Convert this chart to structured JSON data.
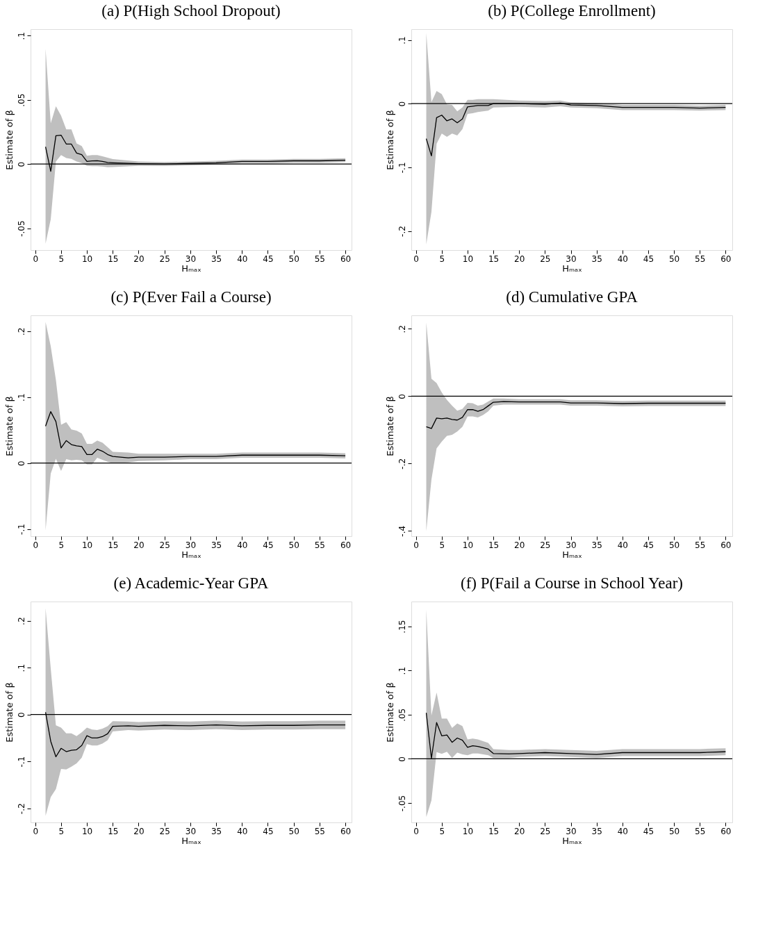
{
  "chart_data": [
    {
      "type": "line",
      "title": "(a) P(High School Dropout)",
      "xlabel": "Hₘₐₓ",
      "ylabel": "Estimate of β",
      "xlim": [
        -0.9,
        61.2
      ],
      "ylim": [
        -0.067,
        0.105
      ],
      "xticks": [
        0,
        5,
        10,
        15,
        20,
        25,
        30,
        35,
        40,
        45,
        50,
        55,
        60
      ],
      "yticks": [
        {
          "value": 0.1,
          "label": ".1"
        },
        {
          "value": 0.05,
          "label": ".05"
        },
        0,
        {
          "value": -0.05,
          "label": "-.05"
        }
      ],
      "grid": false,
      "legend": false,
      "ref_lines": [
        {
          "axis": "y",
          "value": 0,
          "color": "#000000"
        }
      ],
      "series": [
        {
          "color": "#000000",
          "x": [
            2,
            3,
            4,
            5,
            6,
            7,
            8,
            9,
            10,
            11,
            12,
            13,
            14,
            15,
            20,
            25,
            30,
            35,
            40,
            45,
            50,
            55,
            60
          ],
          "values": [
            0.0134,
            -0.0057,
            0.022,
            0.0225,
            0.0156,
            0.0155,
            0.0085,
            0.0073,
            0.002,
            0.0024,
            0.0026,
            0.002,
            0.0012,
            0.001,
            0.0003,
            0.0,
            0.0005,
            0.001,
            0.002,
            0.002,
            0.0025,
            0.0025,
            0.003
          ],
          "upper": [
            0.0897,
            0.0317,
            0.045,
            0.0377,
            0.027,
            0.027,
            0.016,
            0.014,
            0.0064,
            0.007,
            0.007,
            0.006,
            0.005,
            0.0038,
            0.002,
            0.0015,
            0.002,
            0.0025,
            0.0035,
            0.0035,
            0.004,
            0.004,
            0.0045
          ],
          "lower": [
            -0.062,
            -0.043,
            0.002,
            0.007,
            0.0047,
            0.004,
            0.002,
            0.0007,
            -0.0014,
            -0.0017,
            -0.0017,
            -0.002,
            -0.0025,
            -0.0024,
            -0.0014,
            -0.0015,
            -0.001,
            -0.0005,
            0.0005,
            0.0005,
            0.001,
            0.001,
            0.0015
          ]
        }
      ]
    },
    {
      "type": "line",
      "title": "(b) P(College Enrollment)",
      "xlabel": "Hₘₐₓ",
      "ylabel": "Estimate of β",
      "xlim": [
        -0.9,
        61.3
      ],
      "ylim": [
        -0.23,
        0.117
      ],
      "xticks": [
        0,
        5,
        10,
        15,
        20,
        25,
        30,
        35,
        40,
        45,
        50,
        55,
        60
      ],
      "yticks": [
        {
          "value": 0.1,
          "label": ".1"
        },
        0,
        {
          "value": -0.1,
          "label": "-.1"
        },
        {
          "value": -0.2,
          "label": "-.2"
        }
      ],
      "grid": false,
      "legend": false,
      "ref_lines": [
        {
          "axis": "y",
          "value": 0,
          "color": "#000000"
        }
      ],
      "series": [
        {
          "color": "#000000",
          "x": [
            2,
            3,
            4,
            5,
            6,
            7,
            8,
            9,
            10,
            11,
            12,
            13,
            14,
            15,
            20,
            25,
            28,
            30,
            35,
            40,
            45,
            50,
            55,
            60
          ],
          "values": [
            -0.055,
            -0.082,
            -0.022,
            -0.018,
            -0.027,
            -0.024,
            -0.03,
            -0.024,
            -0.005,
            -0.004,
            -0.003,
            -0.003,
            -0.003,
            0.0,
            0.0,
            -0.001,
            0.001,
            -0.002,
            -0.003,
            -0.006,
            -0.006,
            -0.006,
            -0.007,
            -0.006
          ],
          "upper": [
            0.111,
            0.0025,
            0.02,
            0.015,
            -0.001,
            -0.002,
            -0.012,
            -0.006,
            0.006,
            0.006,
            0.007,
            0.007,
            0.007,
            0.007,
            0.005,
            0.004,
            0.005,
            0.002,
            0.001,
            -0.002,
            -0.002,
            -0.002,
            -0.003,
            -0.002
          ],
          "lower": [
            -0.221,
            -0.17,
            -0.063,
            -0.047,
            -0.052,
            -0.047,
            -0.05,
            -0.04,
            -0.016,
            -0.015,
            -0.013,
            -0.012,
            -0.011,
            -0.006,
            -0.005,
            -0.006,
            -0.004,
            -0.006,
            -0.007,
            -0.01,
            -0.01,
            -0.01,
            -0.011,
            -0.01
          ]
        }
      ]
    },
    {
      "type": "line",
      "title": "(c) P(Ever Fail a Course)",
      "xlabel": "Hₘₐₓ",
      "ylabel": "Estimate of β",
      "xlim": [
        -0.9,
        61.2
      ],
      "ylim": [
        -0.111,
        0.224
      ],
      "xticks": [
        0,
        5,
        10,
        15,
        20,
        25,
        30,
        35,
        40,
        45,
        50,
        55,
        60
      ],
      "yticks": [
        {
          "value": 0.2,
          "label": ".2"
        },
        {
          "value": 0.1,
          "label": ".1"
        },
        0,
        {
          "value": -0.1,
          "label": "-.1"
        }
      ],
      "grid": false,
      "legend": false,
      "ref_lines": [
        {
          "axis": "y",
          "value": 0,
          "color": "#000000"
        }
      ],
      "series": [
        {
          "color": "#000000",
          "x": [
            2,
            3,
            4,
            5,
            6,
            7,
            8,
            9,
            10,
            11,
            12,
            13,
            14,
            15,
            18,
            20,
            25,
            30,
            35,
            40,
            45,
            50,
            55,
            60
          ],
          "values": [
            0.056,
            0.078,
            0.063,
            0.023,
            0.034,
            0.028,
            0.026,
            0.025,
            0.013,
            0.013,
            0.021,
            0.018,
            0.013,
            0.01,
            0.008,
            0.009,
            0.009,
            0.01,
            0.01,
            0.012,
            0.012,
            0.012,
            0.012,
            0.011
          ],
          "upper": [
            0.214,
            0.177,
            0.126,
            0.058,
            0.062,
            0.051,
            0.049,
            0.045,
            0.029,
            0.029,
            0.034,
            0.031,
            0.024,
            0.017,
            0.016,
            0.014,
            0.014,
            0.014,
            0.014,
            0.016,
            0.016,
            0.016,
            0.016,
            0.015
          ],
          "lower": [
            -0.102,
            -0.016,
            0.0065,
            -0.012,
            0.006,
            0.004,
            0.005,
            0.004,
            -0.002,
            -0.002,
            0.008,
            0.005,
            0.002,
            0.0,
            0.001,
            0.003,
            0.004,
            0.006,
            0.006,
            0.008,
            0.008,
            0.008,
            0.008,
            0.007
          ]
        }
      ]
    },
    {
      "type": "line",
      "title": "(d) Cumulative GPA",
      "xlabel": "Hₘₐₓ",
      "ylabel": "Estimate of β",
      "xlim": [
        -0.9,
        61.3
      ],
      "ylim": [
        -0.416,
        0.24
      ],
      "xticks": [
        0,
        5,
        10,
        15,
        20,
        25,
        30,
        35,
        40,
        45,
        50,
        55,
        60
      ],
      "yticks": [
        {
          "value": 0.2,
          "label": ".2"
        },
        0,
        {
          "value": -0.2,
          "label": "-.2"
        },
        {
          "value": -0.4,
          "label": "-.4"
        }
      ],
      "grid": false,
      "legend": false,
      "ref_lines": [
        {
          "axis": "y",
          "value": 0,
          "color": "#000000"
        }
      ],
      "series": [
        {
          "color": "#000000",
          "x": [
            2,
            3,
            4,
            5,
            6,
            7,
            8,
            9,
            10,
            11,
            12,
            13,
            14,
            15,
            17,
            20,
            25,
            28,
            30,
            35,
            40,
            45,
            50,
            55,
            60
          ],
          "values": [
            -0.091,
            -0.096,
            -0.065,
            -0.067,
            -0.065,
            -0.069,
            -0.071,
            -0.063,
            -0.04,
            -0.04,
            -0.045,
            -0.04,
            -0.029,
            -0.018,
            -0.016,
            -0.017,
            -0.017,
            -0.017,
            -0.02,
            -0.02,
            -0.022,
            -0.021,
            -0.021,
            -0.021,
            -0.021
          ],
          "upper": [
            0.219,
            0.052,
            0.039,
            0.011,
            -0.011,
            -0.028,
            -0.043,
            -0.038,
            -0.02,
            -0.021,
            -0.028,
            -0.025,
            -0.016,
            -0.007,
            -0.007,
            -0.009,
            -0.009,
            -0.009,
            -0.012,
            -0.012,
            -0.014,
            -0.013,
            -0.013,
            -0.013,
            -0.013
          ],
          "lower": [
            -0.401,
            -0.248,
            -0.155,
            -0.135,
            -0.118,
            -0.115,
            -0.105,
            -0.091,
            -0.06,
            -0.06,
            -0.063,
            -0.056,
            -0.045,
            -0.028,
            -0.025,
            -0.025,
            -0.025,
            -0.025,
            -0.028,
            -0.028,
            -0.03,
            -0.029,
            -0.029,
            -0.029,
            -0.029
          ]
        }
      ]
    },
    {
      "type": "line",
      "title": "(e) Academic-Year GPA",
      "xlabel": "Hₘₐₓ",
      "ylabel": "Estimate of β",
      "xlim": [
        -0.9,
        61.2
      ],
      "ylim": [
        -0.23,
        0.241
      ],
      "xticks": [
        0,
        5,
        10,
        15,
        20,
        25,
        30,
        35,
        40,
        45,
        50,
        55,
        60
      ],
      "yticks": [
        {
          "value": 0.2,
          "label": ".2"
        },
        {
          "value": 0.1,
          "label": ".1"
        },
        0,
        {
          "value": -0.1,
          "label": "-.1"
        },
        {
          "value": -0.2,
          "label": "-.2"
        }
      ],
      "grid": false,
      "legend": false,
      "ref_lines": [
        {
          "axis": "y",
          "value": 0,
          "color": "#000000"
        }
      ],
      "series": [
        {
          "color": "#000000",
          "x": [
            2,
            3,
            4,
            5,
            6,
            7,
            8,
            9,
            10,
            11,
            12,
            13,
            14,
            15,
            18,
            20,
            25,
            30,
            35,
            40,
            45,
            50,
            55,
            60
          ],
          "values": [
            0.005,
            -0.057,
            -0.09,
            -0.072,
            -0.079,
            -0.076,
            -0.075,
            -0.066,
            -0.045,
            -0.05,
            -0.05,
            -0.047,
            -0.041,
            -0.025,
            -0.024,
            -0.025,
            -0.023,
            -0.024,
            -0.022,
            -0.024,
            -0.023,
            -0.023,
            -0.022,
            -0.022
          ],
          "upper": [
            0.227,
            0.098,
            -0.023,
            -0.028,
            -0.04,
            -0.04,
            -0.046,
            -0.038,
            -0.028,
            -0.032,
            -0.033,
            -0.03,
            -0.025,
            -0.014,
            -0.015,
            -0.016,
            -0.014,
            -0.015,
            -0.013,
            -0.015,
            -0.014,
            -0.014,
            -0.013,
            -0.013
          ],
          "lower": [
            -0.216,
            -0.176,
            -0.159,
            -0.116,
            -0.117,
            -0.111,
            -0.104,
            -0.092,
            -0.063,
            -0.066,
            -0.066,
            -0.062,
            -0.055,
            -0.036,
            -0.033,
            -0.034,
            -0.032,
            -0.033,
            -0.031,
            -0.033,
            -0.032,
            -0.032,
            -0.031,
            -0.031
          ]
        }
      ]
    },
    {
      "type": "line",
      "title": "(f) P(Fail a Course in School Year)",
      "xlabel": "Hₘₐₓ",
      "ylabel": "Estimate of β",
      "xlim": [
        -0.9,
        61.3
      ],
      "ylim": [
        -0.072,
        0.178
      ],
      "xticks": [
        0,
        5,
        10,
        15,
        20,
        25,
        30,
        35,
        40,
        45,
        50,
        55,
        60
      ],
      "yticks": [
        {
          "value": 0.15,
          "label": ".15"
        },
        {
          "value": 0.1,
          "label": ".1"
        },
        {
          "value": 0.05,
          "label": ".05"
        },
        0,
        {
          "value": -0.05,
          "label": "-.05"
        }
      ],
      "grid": false,
      "legend": false,
      "ref_lines": [
        {
          "axis": "y",
          "value": 0,
          "color": "#000000"
        }
      ],
      "series": [
        {
          "color": "#000000",
          "x": [
            2,
            3,
            4,
            5,
            6,
            7,
            8,
            9,
            10,
            11,
            12,
            13,
            14,
            15,
            18,
            20,
            25,
            30,
            35,
            40,
            45,
            50,
            55,
            60
          ],
          "values": [
            0.052,
            0.0005,
            0.041,
            0.026,
            0.027,
            0.0187,
            0.0235,
            0.021,
            0.013,
            0.0147,
            0.014,
            0.0126,
            0.011,
            0.006,
            0.0055,
            0.006,
            0.007,
            0.006,
            0.005,
            0.007,
            0.007,
            0.007,
            0.007,
            0.008
          ],
          "upper": [
            0.169,
            0.049,
            0.075,
            0.0455,
            0.0455,
            0.035,
            0.04,
            0.037,
            0.022,
            0.023,
            0.022,
            0.02,
            0.018,
            0.011,
            0.01,
            0.01,
            0.011,
            0.01,
            0.009,
            0.011,
            0.011,
            0.011,
            0.011,
            0.012
          ],
          "lower": [
            -0.066,
            -0.047,
            0.0076,
            0.0056,
            0.008,
            0.001,
            0.007,
            0.005,
            0.004,
            0.006,
            0.006,
            0.005,
            0.004,
            0.001,
            0.001,
            0.002,
            0.003,
            0.002,
            0.001,
            0.003,
            0.003,
            0.003,
            0.003,
            0.004
          ]
        }
      ]
    }
  ]
}
